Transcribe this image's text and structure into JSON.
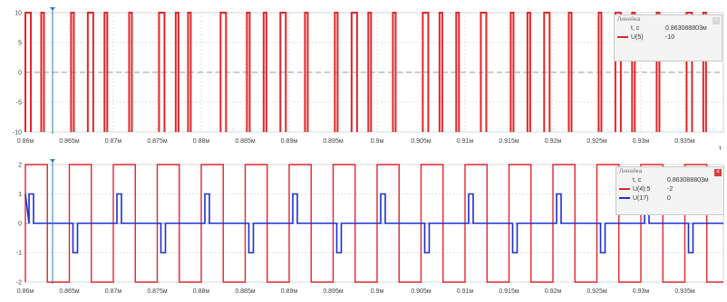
{
  "chart_data": [
    {
      "type": "line",
      "title": "",
      "y_ticks": [
        "10",
        "5",
        "0",
        "-5",
        "-10"
      ],
      "ylim": [
        -10,
        10
      ],
      "x_ticks": [
        "0.86м",
        "0.865м",
        "0.87м",
        "0.875м",
        "0.88м",
        "0.885м",
        "0.89м",
        "0.895м",
        "0.9м",
        "0.905м",
        "0.91м",
        "0.915м",
        "0.92м",
        "0.925м",
        "0.93м",
        "0.935м",
        "0.9"
      ],
      "x_unit_label": "т",
      "series": [
        {
          "name": "U(5)",
          "color": "#e0262b",
          "pulse_times": [
            0.86,
            0.8618,
            0.8652,
            0.8671,
            0.869,
            0.8718,
            0.8752,
            0.8771,
            0.8785,
            0.8822,
            0.8852,
            0.8871,
            0.889,
            0.8918,
            0.8952,
            0.8971,
            0.899,
            0.9018,
            0.9052,
            0.9071,
            0.909,
            0.9118,
            0.9152,
            0.9171,
            0.919,
            0.9218,
            0.9252,
            0.9271,
            0.929,
            0.9318,
            0.9352,
            0.9371
          ]
        }
      ]
    },
    {
      "type": "line",
      "title": "",
      "y_ticks": [
        "2",
        "1",
        "0",
        "-1",
        "-2"
      ],
      "ylim": [
        -2,
        2
      ],
      "x_ticks": [
        "0.86м",
        "0.865м",
        "0.87м",
        "0.875м",
        "0.88м",
        "0.885м",
        "0.89м",
        "0.895м",
        "0.9м",
        "0.905м",
        "0.91м",
        "0.915м",
        "0.92м",
        "0.925м",
        "0.93м",
        "0.935м",
        "0.9"
      ],
      "series": [
        {
          "name": "U(4):5",
          "color": "#e0262b"
        },
        {
          "name": "U(17)",
          "color": "#1c2fd6",
          "values_pattern": [
            1,
            0,
            -1,
            0
          ]
        }
      ]
    }
  ],
  "rulers": [
    {
      "title": "Линейка",
      "t_label": "t, c",
      "t_value": "0.863088803м",
      "rows": [
        {
          "label": "U(5)",
          "value": "-10",
          "color": "#e0262b"
        }
      ]
    },
    {
      "title": "Линейка",
      "t_label": "t, c",
      "t_value": "0.863088803м",
      "rows": [
        {
          "label": "U(4):5",
          "value": "-2",
          "color": "#e0262b"
        },
        {
          "label": "U(17)",
          "value": "0",
          "color": "#1c2fd6"
        }
      ]
    }
  ]
}
